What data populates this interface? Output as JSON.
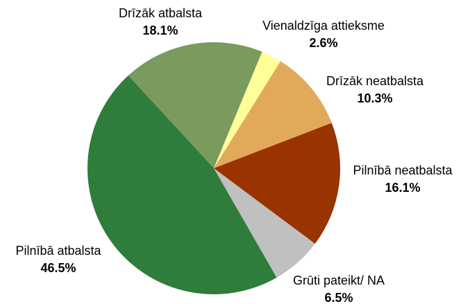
{
  "chart_data": {
    "type": "pie",
    "categories": [
      "Drīzāk atbalsta",
      "Vienaldzīga attieksme",
      "Drīzāk neatbalsta",
      "Pilnībā neatbalsta",
      "Grūti pateikt/ NA",
      "Pilnībā atbalsta"
    ],
    "values": [
      18.1,
      2.6,
      10.3,
      16.1,
      6.5,
      46.5
    ],
    "value_labels": [
      "18.1%",
      "2.6%",
      "10.3%",
      "16.1%",
      "6.5%",
      "46.5%"
    ],
    "colors": [
      "#7a9a5e",
      "#ffff99",
      "#e3a95a",
      "#993300",
      "#c0c0c0",
      "#2e7d3a"
    ]
  }
}
